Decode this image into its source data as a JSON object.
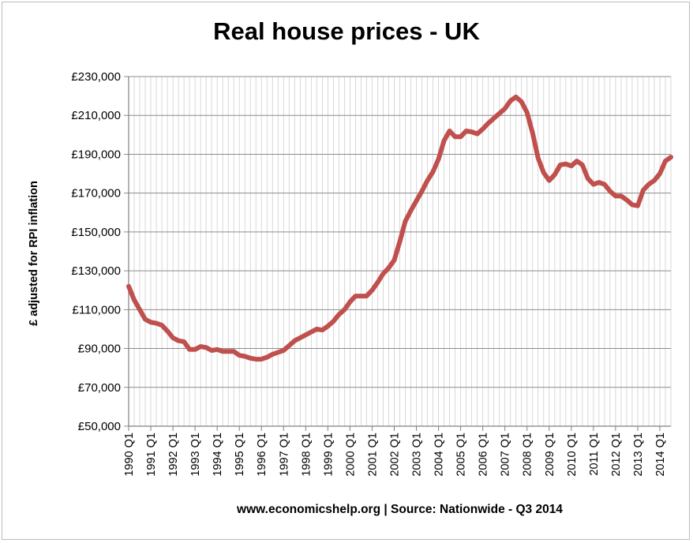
{
  "chart_data": {
    "type": "line",
    "title": "Real house prices - UK",
    "ylabel": "£ adjusted for RPI inflation",
    "xlabel": "",
    "source_note": "www.economicshelp.org | Source: Nationwide - Q3 2014",
    "ylim": [
      50000,
      230000
    ],
    "y_ticks": [
      50000,
      70000,
      90000,
      110000,
      130000,
      150000,
      170000,
      190000,
      210000,
      230000
    ],
    "y_tick_labels": [
      "£50,000",
      "£70,000",
      "£90,000",
      "£110,000",
      "£130,000",
      "£150,000",
      "£170,000",
      "£190,000",
      "£210,000",
      "£230,000"
    ],
    "x_tick_labels": [
      "1990 Q1",
      "1991 Q1",
      "1992 Q1",
      "1993 Q1",
      "1994 Q1",
      "1995 Q1",
      "1996 Q1",
      "1997 Q1",
      "1998 Q1",
      "1999 Q1",
      "2000 Q1",
      "2001 Q1",
      "2002 Q1",
      "2003 Q1",
      "2004 Q1",
      "2005 Q1",
      "2006 Q1",
      "2007 Q1",
      "2008 Q1",
      "2009 Q1",
      "2010 Q1",
      "2011 Q1",
      "2012 Q1",
      "2013 Q1",
      "2014 Q1"
    ],
    "x_start": "1990 Q1",
    "x_end": "2014 Q3",
    "line_color": "#c0504d",
    "grid": "horizontal major gridlines, vertical line per quarter",
    "legend": "none",
    "series": [
      {
        "values": [
          122000,
          115000,
          110000,
          105000,
          103500,
          103000,
          102000,
          99000,
          95500,
          94000,
          93500,
          89500,
          89500,
          91000,
          90500,
          89000,
          89500,
          88500,
          88500,
          88500,
          86500,
          86000,
          85000,
          84500,
          84500,
          85500,
          87000,
          88000,
          89000,
          91500,
          94000,
          95500,
          97000,
          98500,
          100000,
          99500,
          101500,
          104000,
          107500,
          110000,
          114000,
          117000,
          117000,
          117000,
          120000,
          124000,
          128500,
          131500,
          135500,
          145000,
          155500,
          161000,
          166000,
          171000,
          176500,
          181000,
          187500,
          197000,
          202000,
          199000,
          199000,
          202000,
          201500,
          200500,
          203000,
          206000,
          208500,
          211000,
          213500,
          217500,
          219500,
          217000,
          211500,
          201000,
          188000,
          180500,
          176500,
          179500,
          184500,
          185000,
          184000,
          186500,
          184500,
          177500,
          174500,
          175500,
          174500,
          171000,
          168500,
          168500,
          166500,
          164000,
          163500,
          171500,
          174500,
          176500,
          180000,
          186500,
          188500
        ]
      }
    ]
  }
}
